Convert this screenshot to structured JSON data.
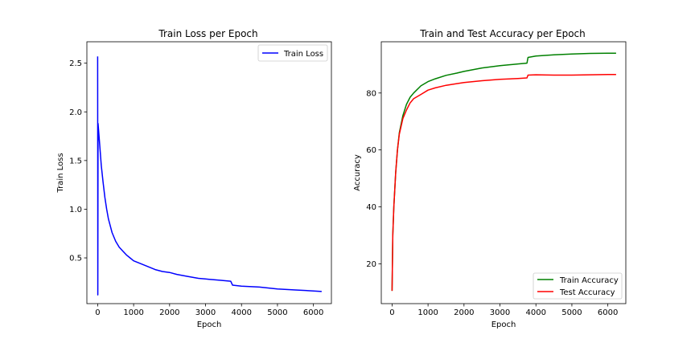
{
  "chart_data": [
    {
      "type": "line",
      "title": "Train Loss per Epoch",
      "xlabel": "Epoch",
      "ylabel": "Train Loss",
      "xlim": [
        -300,
        6500
      ],
      "ylim": [
        0.03,
        2.72
      ],
      "xticks": [
        0,
        1000,
        2000,
        3000,
        4000,
        5000,
        6000
      ],
      "xtick_labels": [
        "0",
        "1000",
        "2000",
        "3000",
        "4000",
        "5000",
        "6000"
      ],
      "yticks": [
        0.5,
        1.0,
        1.5,
        2.0,
        2.5
      ],
      "ytick_labels": [
        "0.5",
        "1.0",
        "1.5",
        "2.0",
        "2.5"
      ],
      "grid": false,
      "legend": "upper-right",
      "series": [
        {
          "name": "Train Loss",
          "color": "#0000ff",
          "points": [
            [
              0,
              2.57
            ],
            [
              5,
              0.12
            ],
            [
              10,
              1.88
            ],
            [
              50,
              1.7
            ],
            [
              100,
              1.45
            ],
            [
              150,
              1.28
            ],
            [
              200,
              1.12
            ],
            [
              250,
              1.0
            ],
            [
              300,
              0.9
            ],
            [
              400,
              0.76
            ],
            [
              500,
              0.67
            ],
            [
              600,
              0.61
            ],
            [
              700,
              0.57
            ],
            [
              800,
              0.53
            ],
            [
              900,
              0.5
            ],
            [
              1000,
              0.47
            ],
            [
              1200,
              0.44
            ],
            [
              1400,
              0.41
            ],
            [
              1600,
              0.38
            ],
            [
              1800,
              0.36
            ],
            [
              2000,
              0.35
            ],
            [
              2200,
              0.33
            ],
            [
              2500,
              0.31
            ],
            [
              2800,
              0.29
            ],
            [
              3100,
              0.28
            ],
            [
              3400,
              0.27
            ],
            [
              3700,
              0.26
            ],
            [
              3750,
              0.22
            ],
            [
              4000,
              0.21
            ],
            [
              4500,
              0.2
            ],
            [
              5000,
              0.18
            ],
            [
              5500,
              0.17
            ],
            [
              6000,
              0.16
            ],
            [
              6230,
              0.155
            ]
          ]
        }
      ]
    },
    {
      "type": "line",
      "title": "Train and Test Accuracy per Epoch",
      "xlabel": "Epoch",
      "ylabel": "Accuracy",
      "xlim": [
        -300,
        6500
      ],
      "ylim": [
        6,
        98
      ],
      "xticks": [
        0,
        1000,
        2000,
        3000,
        4000,
        5000,
        6000
      ],
      "xtick_labels": [
        "0",
        "1000",
        "2000",
        "3000",
        "4000",
        "5000",
        "6000"
      ],
      "yticks": [
        20,
        40,
        60,
        80
      ],
      "ytick_labels": [
        "20",
        "40",
        "60",
        "80"
      ],
      "grid": false,
      "legend": "lower-right",
      "series": [
        {
          "name": "Train Accuracy",
          "color": "#008000",
          "points": [
            [
              0,
              10.5
            ],
            [
              20,
              30
            ],
            [
              50,
              40
            ],
            [
              100,
              52
            ],
            [
              150,
              60
            ],
            [
              200,
              66
            ],
            [
              300,
              72
            ],
            [
              400,
              76
            ],
            [
              500,
              78.5
            ],
            [
              600,
              80
            ],
            [
              800,
              82.5
            ],
            [
              1000,
              84
            ],
            [
              1200,
              85
            ],
            [
              1500,
              86.2
            ],
            [
              1800,
              87
            ],
            [
              2000,
              87.6
            ],
            [
              2500,
              88.8
            ],
            [
              3000,
              89.6
            ],
            [
              3500,
              90.2
            ],
            [
              3750,
              90.5
            ],
            [
              3780,
              92.5
            ],
            [
              4000,
              93
            ],
            [
              4500,
              93.4
            ],
            [
              5000,
              93.7
            ],
            [
              5500,
              93.9
            ],
            [
              6000,
              94
            ],
            [
              6230,
              94
            ]
          ]
        },
        {
          "name": "Test Accuracy",
          "color": "#ff0000",
          "points": [
            [
              0,
              10.5
            ],
            [
              20,
              30
            ],
            [
              50,
              40
            ],
            [
              100,
              52
            ],
            [
              150,
              60
            ],
            [
              200,
              65.5
            ],
            [
              300,
              71
            ],
            [
              400,
              74
            ],
            [
              500,
              76.5
            ],
            [
              600,
              78
            ],
            [
              800,
              79.5
            ],
            [
              1000,
              81
            ],
            [
              1200,
              81.8
            ],
            [
              1500,
              82.7
            ],
            [
              1800,
              83.3
            ],
            [
              2000,
              83.7
            ],
            [
              2500,
              84.3
            ],
            [
              3000,
              84.8
            ],
            [
              3500,
              85.1
            ],
            [
              3750,
              85.3
            ],
            [
              3780,
              86.3
            ],
            [
              4000,
              86.4
            ],
            [
              4500,
              86.3
            ],
            [
              5000,
              86.3
            ],
            [
              5500,
              86.4
            ],
            [
              6000,
              86.5
            ],
            [
              6230,
              86.5
            ]
          ]
        }
      ]
    }
  ]
}
